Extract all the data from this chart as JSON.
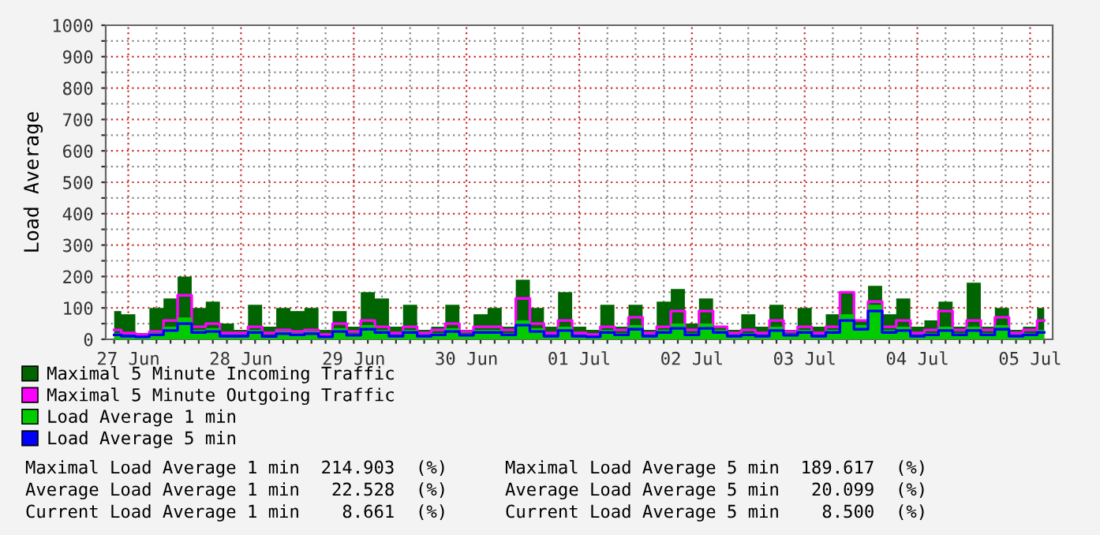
{
  "chart_data": {
    "type": "area",
    "ylabel": "Load Average",
    "categories": [
      null,
      "27 Jun",
      null,
      null,
      null,
      null,
      null,
      null,
      null,
      "28 Jun",
      null,
      null,
      null,
      null,
      null,
      null,
      null,
      "29 Jun",
      null,
      null,
      null,
      null,
      null,
      null,
      null,
      "30 Jun",
      null,
      null,
      null,
      null,
      null,
      null,
      null,
      "01 Jul",
      null,
      null,
      null,
      null,
      null,
      null,
      null,
      "02 Jul",
      null,
      null,
      null,
      null,
      null,
      null,
      null,
      "03 Jul",
      null,
      null,
      null,
      null,
      null,
      null,
      null,
      "04 Jul",
      null,
      null,
      null,
      null,
      null,
      null,
      null,
      "05 Jul",
      null
    ],
    "series": [
      {
        "name": "Maximal 5 Minute Incoming Traffic",
        "color": "#006400",
        "values": [
          90,
          80,
          20,
          100,
          130,
          200,
          100,
          120,
          50,
          30,
          110,
          40,
          100,
          90,
          100,
          30,
          90,
          40,
          150,
          130,
          40,
          110,
          30,
          40,
          110,
          30,
          80,
          100,
          40,
          190,
          100,
          40,
          150,
          40,
          30,
          110,
          40,
          110,
          30,
          120,
          160,
          50,
          130,
          40,
          30,
          80,
          40,
          110,
          30,
          100,
          40,
          80,
          150,
          60,
          170,
          80,
          130,
          40,
          60,
          120,
          40,
          180,
          40,
          100,
          30,
          40,
          100
        ]
      },
      {
        "name": "Maximal 5 Minute Outgoing Traffic",
        "type": "step",
        "color": "#ff00ff",
        "values": [
          30,
          20,
          15,
          25,
          60,
          140,
          40,
          50,
          20,
          20,
          40,
          20,
          30,
          25,
          30,
          15,
          50,
          25,
          60,
          40,
          20,
          40,
          20,
          30,
          50,
          25,
          40,
          40,
          30,
          130,
          50,
          20,
          60,
          20,
          15,
          40,
          30,
          70,
          20,
          40,
          90,
          30,
          90,
          40,
          20,
          30,
          20,
          60,
          25,
          40,
          20,
          40,
          150,
          60,
          120,
          40,
          60,
          20,
          30,
          90,
          30,
          60,
          30,
          70,
          20,
          30,
          60
        ]
      },
      {
        "name": "Load Average 1 min",
        "color": "#00cc00",
        "values": [
          20,
          15,
          10,
          20,
          40,
          70,
          30,
          35,
          15,
          15,
          30,
          12,
          25,
          20,
          25,
          10,
          35,
          18,
          45,
          30,
          15,
          30,
          15,
          20,
          35,
          18,
          30,
          30,
          20,
          60,
          35,
          15,
          40,
          15,
          10,
          30,
          20,
          45,
          15,
          30,
          50,
          20,
          50,
          30,
          15,
          20,
          15,
          40,
          18,
          30,
          15,
          30,
          80,
          45,
          110,
          30,
          40,
          15,
          20,
          40,
          20,
          40,
          20,
          45,
          15,
          20,
          30
        ]
      },
      {
        "name": "Load Average 5 min",
        "type": "step",
        "color": "#0000ff",
        "values": [
          14,
          10,
          8,
          14,
          28,
          50,
          22,
          25,
          10,
          10,
          22,
          9,
          18,
          14,
          18,
          8,
          25,
          13,
          32,
          22,
          10,
          22,
          10,
          14,
          25,
          13,
          22,
          22,
          14,
          45,
          25,
          10,
          28,
          10,
          8,
          22,
          14,
          32,
          10,
          22,
          35,
          14,
          35,
          22,
          10,
          14,
          10,
          28,
          13,
          22,
          10,
          22,
          60,
          32,
          90,
          22,
          28,
          10,
          14,
          28,
          14,
          28,
          14,
          32,
          10,
          14,
          22
        ]
      }
    ],
    "ylim": [
      0,
      1000
    ],
    "yticks": [
      0,
      {
        "value": 50,
        "label": null
      },
      100,
      {
        "value": 150,
        "label": null
      },
      200,
      {
        "value": 250,
        "label": null
      },
      300,
      {
        "value": 350,
        "label": null
      },
      400,
      {
        "value": 450,
        "label": null
      },
      500,
      {
        "value": 550,
        "label": null
      },
      600,
      {
        "value": 650,
        "label": null
      },
      700,
      {
        "value": 750,
        "label": null
      },
      800,
      {
        "value": 850,
        "label": null
      },
      900,
      {
        "value": 950,
        "label": null
      },
      1000
    ],
    "grid": true,
    "legend": "bottom",
    "annotations": [
      "Maximal Load Average 1 min  214.903  (%)",
      "Maximal Load Average 5 min  189.617  (%)",
      "Average Load Average 1 min   22.528  (%)",
      "Average Load Average 5 min   20.099  (%)",
      "Current Load Average 1 min    8.661  (%)",
      "Current Load Average 5 min    8.500  (%)"
    ]
  }
}
